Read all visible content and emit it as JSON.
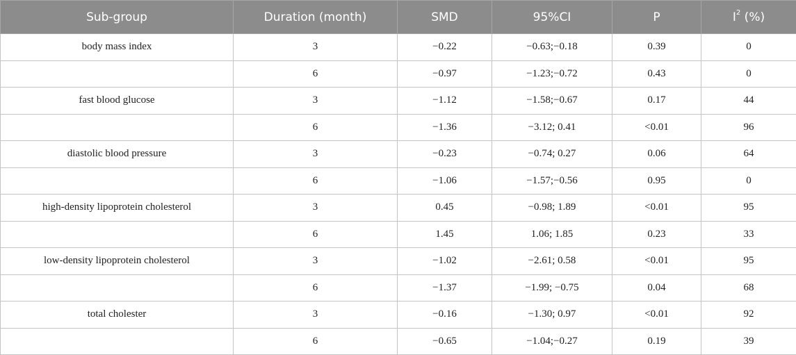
{
  "table": {
    "headers": {
      "subgroup": "Sub-group",
      "duration": "Duration (month)",
      "smd": "SMD",
      "ci": "95%CI",
      "p": "P",
      "i2_base": "I",
      "i2_sup": "2",
      "i2_unit": " (%)"
    },
    "rows": [
      {
        "subgroup": "body mass index",
        "duration": "3",
        "smd": "−0.22",
        "ci": "−0.63;−0.18",
        "p": "0.39",
        "i2": "0"
      },
      {
        "subgroup": "",
        "duration": "6",
        "smd": "−0.97",
        "ci": "−1.23;−0.72",
        "p": "0.43",
        "i2": "0"
      },
      {
        "subgroup": "fast blood glucose",
        "duration": "3",
        "smd": "−1.12",
        "ci": "−1.58;−0.67",
        "p": "0.17",
        "i2": "44"
      },
      {
        "subgroup": "",
        "duration": "6",
        "smd": "−1.36",
        "ci": "−3.12; 0.41",
        "p": "<0.01",
        "i2": "96"
      },
      {
        "subgroup": "diastolic blood pressure",
        "duration": "3",
        "smd": "−0.23",
        "ci": "−0.74; 0.27",
        "p": "0.06",
        "i2": "64"
      },
      {
        "subgroup": "",
        "duration": "6",
        "smd": "−1.06",
        "ci": "−1.57;−0.56",
        "p": "0.95",
        "i2": "0"
      },
      {
        "subgroup": "high-density lipoprotein cholesterol",
        "duration": "3",
        "smd": "0.45",
        "ci": "−0.98; 1.89",
        "p": "<0.01",
        "i2": "95"
      },
      {
        "subgroup": "",
        "duration": "6",
        "smd": "1.45",
        "ci": "1.06; 1.85",
        "p": "0.23",
        "i2": "33"
      },
      {
        "subgroup": "low-density lipoprotein cholesterol",
        "duration": "3",
        "smd": "−1.02",
        "ci": "−2.61; 0.58",
        "p": "<0.01",
        "i2": "95"
      },
      {
        "subgroup": "",
        "duration": "6",
        "smd": "−1.37",
        "ci": "−1.99; −0.75",
        "p": "0.04",
        "i2": "68"
      },
      {
        "subgroup": "total cholester",
        "duration": "3",
        "smd": "−0.16",
        "ci": "−1.30; 0.97",
        "p": "<0.01",
        "i2": "92"
      },
      {
        "subgroup": "",
        "duration": "6",
        "smd": "−0.65",
        "ci": "−1.04;−0.27",
        "p": "0.19",
        "i2": "39"
      }
    ]
  }
}
